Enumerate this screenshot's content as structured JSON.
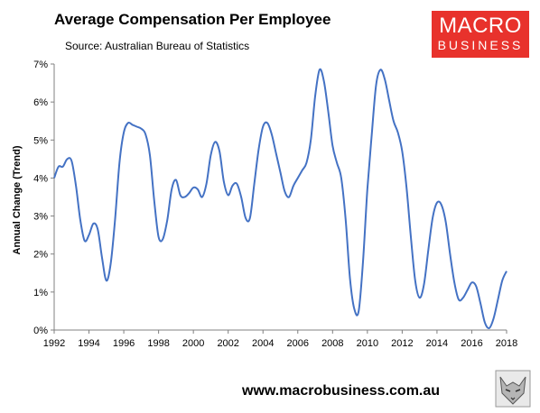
{
  "header": {
    "title": "Average Compensation Per Employee",
    "source": "Source: Australian Bureau of Statistics"
  },
  "logo": {
    "line1": "MACRO",
    "line2": "BUSINESS",
    "color": "#e8322c"
  },
  "footer": {
    "url": "www.macrobusiness.com.au"
  },
  "chart_data": {
    "type": "line",
    "title": "Average Compensation Per Employee",
    "ylabel": "Annual Change (Trend)",
    "xlabel": "",
    "xlim": [
      1992,
      2018
    ],
    "ylim": [
      0,
      7
    ],
    "grid": false,
    "legend": "none",
    "line_color": "#4472c4",
    "x_ticks": [
      "1992",
      "1994",
      "1996",
      "1998",
      "2000",
      "2002",
      "2004",
      "2006",
      "2008",
      "2010",
      "2012",
      "2014",
      "2016",
      "2018"
    ],
    "y_ticks": [
      "0%",
      "1%",
      "2%",
      "3%",
      "4%",
      "5%",
      "6%",
      "7%"
    ],
    "series": [
      {
        "x": [
          1992.0,
          1992.25,
          1992.5,
          1992.75,
          1993.0,
          1993.25,
          1993.5,
          1993.75,
          1994.0,
          1994.25,
          1994.5,
          1994.75,
          1995.0,
          1995.25,
          1995.5,
          1995.75,
          1996.0,
          1996.25,
          1996.5,
          1996.75,
          1997.0,
          1997.25,
          1997.5,
          1997.75,
          1998.0,
          1998.25,
          1998.5,
          1998.75,
          1999.0,
          1999.25,
          1999.5,
          1999.75,
          2000.0,
          2000.25,
          2000.5,
          2000.75,
          2001.0,
          2001.25,
          2001.5,
          2001.75,
          2002.0,
          2002.25,
          2002.5,
          2002.75,
          2003.0,
          2003.25,
          2003.5,
          2003.75,
          2004.0,
          2004.25,
          2004.5,
          2004.75,
          2005.0,
          2005.25,
          2005.5,
          2005.75,
          2006.0,
          2006.25,
          2006.5,
          2006.75,
          2007.0,
          2007.25,
          2007.5,
          2007.75,
          2008.0,
          2008.25,
          2008.5,
          2008.75,
          2009.0,
          2009.25,
          2009.5,
          2009.75,
          2010.0,
          2010.25,
          2010.5,
          2010.75,
          2011.0,
          2011.25,
          2011.5,
          2011.75,
          2012.0,
          2012.25,
          2012.5,
          2012.75,
          2013.0,
          2013.25,
          2013.5,
          2013.75,
          2014.0,
          2014.25,
          2014.5,
          2014.75,
          2015.0,
          2015.25,
          2015.5,
          2015.75,
          2016.0,
          2016.25,
          2016.5,
          2016.75,
          2017.0,
          2017.25,
          2017.5,
          2017.75,
          2018.0
        ],
        "y": [
          4.0,
          4.3,
          4.3,
          4.5,
          4.45,
          3.8,
          2.9,
          2.35,
          2.5,
          2.8,
          2.65,
          1.9,
          1.3,
          1.75,
          2.9,
          4.4,
          5.2,
          5.45,
          5.4,
          5.35,
          5.3,
          5.15,
          4.6,
          3.4,
          2.45,
          2.4,
          2.9,
          3.7,
          3.95,
          3.55,
          3.5,
          3.6,
          3.75,
          3.7,
          3.5,
          3.85,
          4.6,
          4.95,
          4.7,
          3.9,
          3.55,
          3.8,
          3.85,
          3.5,
          2.95,
          2.95,
          3.85,
          4.75,
          5.35,
          5.45,
          5.15,
          4.65,
          4.15,
          3.65,
          3.5,
          3.8,
          4.0,
          4.2,
          4.4,
          5.0,
          6.15,
          6.85,
          6.55,
          5.75,
          4.85,
          4.4,
          4.0,
          2.9,
          1.35,
          0.55,
          0.5,
          1.8,
          3.7,
          5.15,
          6.45,
          6.85,
          6.6,
          6.05,
          5.5,
          5.2,
          4.7,
          3.75,
          2.45,
          1.3,
          0.85,
          1.2,
          2.1,
          2.95,
          3.35,
          3.3,
          2.85,
          2.0,
          1.25,
          0.8,
          0.85,
          1.05,
          1.25,
          1.15,
          0.7,
          0.2,
          0.05,
          0.3,
          0.8,
          1.3,
          1.55
        ]
      }
    ]
  }
}
